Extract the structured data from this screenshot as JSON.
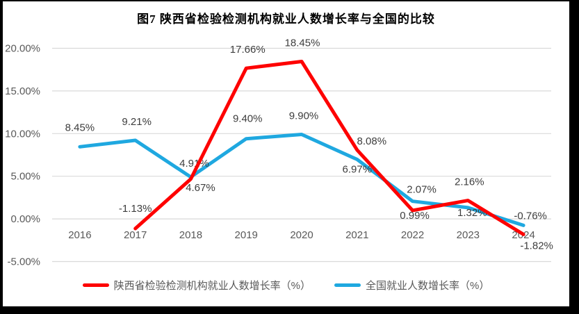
{
  "chart_data": {
    "type": "line",
    "title": "图7 陕西省检验检测机构就业人数增长率与全国的比较",
    "categories": [
      "2016",
      "2017",
      "2018",
      "2019",
      "2020",
      "2021",
      "2022",
      "2023",
      "2024"
    ],
    "series": [
      {
        "name": "全国就业人数增长率（%）",
        "color": "#1fa8e0",
        "values": [
          8.45,
          9.21,
          4.91,
          9.4,
          9.9,
          6.97,
          2.07,
          1.32,
          -0.76
        ],
        "data_labels": [
          "8.45%",
          "9.21%",
          "4.91%",
          "9.40%",
          "9.90%",
          "6.97%",
          "2.07%",
          "1.32%",
          "-0.76%"
        ],
        "label_offsets": [
          [
            0,
            -23
          ],
          [
            2,
            -22
          ],
          [
            5,
            -15
          ],
          [
            2,
            -24
          ],
          [
            3,
            -22
          ],
          [
            0,
            19
          ],
          [
            13,
            -12
          ],
          [
            6,
            12
          ],
          [
            10,
            -9
          ]
        ]
      },
      {
        "name": "陕西省检验检测机构就业人数增长率（%）",
        "color": "#fe0000",
        "values": [
          null,
          -1.13,
          4.67,
          17.66,
          18.45,
          8.08,
          0.99,
          2.16,
          -1.82
        ],
        "data_labels": [
          "",
          "-1.13%",
          "4.67%",
          "17.66%",
          "18.45%",
          "8.08%",
          "0.99%",
          "2.16%",
          "-1.82%"
        ],
        "label_offsets": [
          [
            0,
            0
          ],
          [
            0,
            -24
          ],
          [
            14,
            17
          ],
          [
            2,
            -22
          ],
          [
            1,
            -22
          ],
          [
            21,
            -8
          ],
          [
            3,
            12
          ],
          [
            2,
            -22
          ],
          [
            19,
            21
          ]
        ]
      }
    ],
    "y_axis": {
      "tick_labels": [
        "20.00%",
        "15.00%",
        "10.00%",
        "5.00%",
        "0.00%",
        "-5.00%"
      ],
      "tick_values": [
        20,
        15,
        10,
        5,
        0,
        -5
      ],
      "min": -5,
      "max": 20
    },
    "grid": true,
    "gridline_color": "#d9d9d9",
    "legend_position": "bottom",
    "legend": [
      {
        "label": "陕西省检验检测机构就业人数增长率（%）",
        "color": "#fe0000"
      },
      {
        "label": "全国就业人数增长率（%）",
        "color": "#1fa8e0"
      }
    ]
  }
}
